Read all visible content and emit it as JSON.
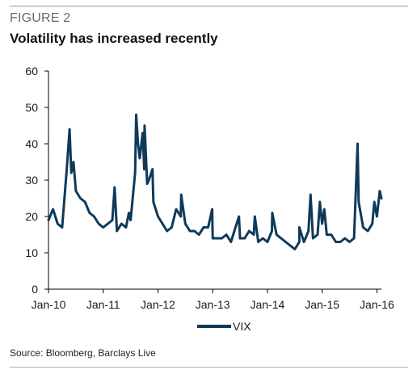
{
  "header": {
    "figure_label": "FIGURE 2",
    "title": "Volatility has increased recently"
  },
  "footer": {
    "source": "Source: Bloomberg, Barclays Live"
  },
  "colors": {
    "series": "#0e3a5a",
    "axis": "#000000",
    "text": "#1a1a1a"
  },
  "chart_data": {
    "type": "line",
    "title": "",
    "xlabel": "",
    "ylabel": "",
    "ylim": [
      0,
      60
    ],
    "yticks": [
      0,
      10,
      20,
      30,
      40,
      50,
      60
    ],
    "xlim": [
      "2010-01",
      "2016-02"
    ],
    "xticks": [
      {
        "date": "2010-01",
        "label": "Jan-10"
      },
      {
        "date": "2011-01",
        "label": "Jan-11"
      },
      {
        "date": "2012-01",
        "label": "Jan-12"
      },
      {
        "date": "2013-01",
        "label": "Jan-13"
      },
      {
        "date": "2014-01",
        "label": "Jan-14"
      },
      {
        "date": "2015-01",
        "label": "Jan-15"
      },
      {
        "date": "2016-01",
        "label": "Jan-16"
      }
    ],
    "grid": false,
    "legend": "bottom-center",
    "series": [
      {
        "name": "VIX",
        "x": [
          "2010-01",
          "2010-02",
          "2010-03",
          "2010-04",
          "2010-05",
          "2010-05-20",
          "2010-06",
          "2010-06-15",
          "2010-07",
          "2010-08",
          "2010-09",
          "2010-10",
          "2010-11",
          "2010-12",
          "2011-01",
          "2011-02",
          "2011-03",
          "2011-03-16",
          "2011-04",
          "2011-05",
          "2011-06",
          "2011-06-20",
          "2011-07",
          "2011-08",
          "2011-08-08",
          "2011-08-20",
          "2011-09",
          "2011-09-20",
          "2011-10",
          "2011-10-03",
          "2011-10-20",
          "2011-11",
          "2011-11-25",
          "2011-12",
          "2012-01",
          "2012-02",
          "2012-03",
          "2012-04",
          "2012-05",
          "2012-06",
          "2012-06-04",
          "2012-07",
          "2012-08",
          "2012-09",
          "2012-10",
          "2012-11",
          "2012-12",
          "2012-12-28",
          "2013-01",
          "2013-02",
          "2013-03",
          "2013-04",
          "2013-05",
          "2013-06",
          "2013-06-24",
          "2013-07",
          "2013-08",
          "2013-09",
          "2013-10",
          "2013-10-08",
          "2013-11",
          "2013-12",
          "2014-01",
          "2014-02",
          "2014-02-03",
          "2014-03",
          "2014-04",
          "2014-05",
          "2014-06",
          "2014-07",
          "2014-08",
          "2014-08-01",
          "2014-09",
          "2014-10",
          "2014-10-15",
          "2014-11",
          "2014-12",
          "2014-12-16",
          "2015-01",
          "2015-01-15",
          "2015-02",
          "2015-03",
          "2015-04",
          "2015-05",
          "2015-06",
          "2015-07",
          "2015-08",
          "2015-08-24",
          "2015-09",
          "2015-10",
          "2015-11",
          "2015-12",
          "2015-12-14",
          "2016-01",
          "2016-01-20",
          "2016-02"
        ],
        "values": [
          19,
          22,
          18,
          17,
          33,
          44,
          32,
          35,
          27,
          25,
          24,
          21,
          20,
          18,
          17,
          18,
          19,
          28,
          16,
          18,
          17,
          21,
          19,
          32,
          48,
          40,
          36,
          43,
          33,
          45,
          29,
          30,
          33,
          24,
          20,
          18,
          16,
          17,
          22,
          20,
          26,
          18,
          16,
          16,
          15,
          17,
          17,
          22,
          14,
          14,
          14,
          15,
          13,
          17,
          20,
          14,
          14,
          16,
          15,
          20,
          13,
          14,
          13,
          16,
          21,
          15,
          14,
          13,
          12,
          11,
          13,
          17,
          13,
          16,
          26,
          14,
          15,
          24,
          18,
          22,
          15,
          15,
          13,
          13,
          14,
          13,
          14,
          40,
          24,
          17,
          16,
          18,
          24,
          20,
          27,
          25
        ]
      }
    ]
  }
}
